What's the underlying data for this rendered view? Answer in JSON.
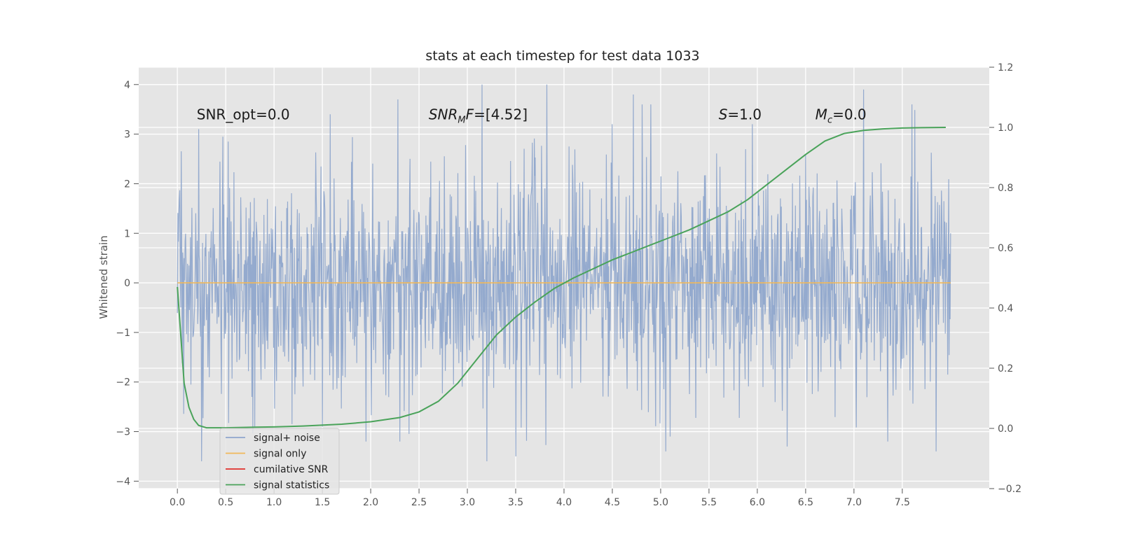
{
  "chart_data": {
    "type": "line",
    "title": "stats at each timestep for test data 1033",
    "xlabel": "",
    "ylabel": "Whitened strain",
    "xlim": [
      -0.4,
      8.4
    ],
    "ylim": [
      -4.15,
      4.35
    ],
    "y2lim": [
      -0.2,
      1.2
    ],
    "grid": true,
    "x_ticks": [
      "0.0",
      "0.5",
      "1.0",
      "1.5",
      "2.0",
      "2.5",
      "3.0",
      "3.5",
      "4.0",
      "4.5",
      "5.0",
      "5.5",
      "6.0",
      "6.5",
      "7.0",
      "7.5"
    ],
    "x_tick_values": [
      0,
      0.5,
      1,
      1.5,
      2,
      2.5,
      3,
      3.5,
      4,
      4.5,
      5,
      5.5,
      6,
      6.5,
      7,
      7.5
    ],
    "y_ticks": [
      "4",
      "3",
      "2",
      "1",
      "0",
      "−1",
      "−2",
      "−3",
      "−4"
    ],
    "y_tick_values": [
      4,
      3,
      2,
      1,
      0,
      -1,
      -2,
      -3,
      -4
    ],
    "y2_ticks": [
      "1.2",
      "1.0",
      "0.8",
      "0.6",
      "0.4",
      "0.2",
      "0.0",
      "−0.2"
    ],
    "y2_tick_values": [
      1.2,
      1.0,
      0.8,
      0.6,
      0.4,
      0.2,
      0.0,
      -0.2
    ],
    "annotations": [
      {
        "id": "snr-opt",
        "x": 0.2,
        "y": 3.3,
        "prefix": "SNR_opt=0.0",
        "sub": "",
        "suffix": ""
      },
      {
        "id": "snr-mf",
        "x": 2.6,
        "y": 3.3,
        "prefix": "SNR",
        "sub": "M",
        "suffix": "F=[4.52]"
      },
      {
        "id": "s-val",
        "x": 5.6,
        "y": 3.3,
        "prefix": "S",
        "sub": "",
        "suffix": "=1.0"
      },
      {
        "id": "mc-val",
        "x": 6.6,
        "y": 3.3,
        "prefix": "M",
        "sub": "c",
        "suffix": "=0.0"
      }
    ],
    "series": [
      {
        "name": "signal+ noise",
        "axis": "left",
        "color": "#8fa6cc",
        "x_range": [
          0.0,
          8.0
        ],
        "n_points": 1600,
        "envelope_typical": [
          -2.2,
          2.4
        ],
        "extremes_sample": [
          {
            "x": 0.02,
            "y": 1.7
          },
          {
            "x": 0.22,
            "y": 3.1
          },
          {
            "x": 0.25,
            "y": -3.6
          },
          {
            "x": 1.5,
            "y": -2.9
          },
          {
            "x": 1.58,
            "y": 3.4
          },
          {
            "x": 1.95,
            "y": -3.2
          },
          {
            "x": 2.28,
            "y": 3.7
          },
          {
            "x": 2.3,
            "y": -3.2
          },
          {
            "x": 3.15,
            "y": 4.0
          },
          {
            "x": 3.2,
            "y": -3.6
          },
          {
            "x": 3.5,
            "y": -3.5
          },
          {
            "x": 3.82,
            "y": 4.0
          },
          {
            "x": 4.5,
            "y": 3.2
          },
          {
            "x": 4.72,
            "y": 3.8
          },
          {
            "x": 4.9,
            "y": 3.6
          },
          {
            "x": 5.1,
            "y": -3.1
          },
          {
            "x": 5.95,
            "y": 3.2
          },
          {
            "x": 7.1,
            "y": 3.9
          },
          {
            "x": 7.35,
            "y": -3.2
          },
          {
            "x": 7.6,
            "y": 3.6
          },
          {
            "x": 7.85,
            "y": -3.4
          },
          {
            "x": 8.0,
            "y": 1.0
          }
        ]
      },
      {
        "name": "signal only",
        "axis": "left",
        "color": "#f0b85a",
        "x": [
          0.0,
          8.0
        ],
        "y": [
          0.0,
          0.0
        ]
      },
      {
        "name": "cumilative SNR",
        "axis": "left",
        "color": "#e0302a",
        "x": [],
        "y": []
      },
      {
        "name": "signal statistics",
        "axis": "right",
        "color": "#4aa35a",
        "x": [
          0.0,
          0.07,
          0.12,
          0.17,
          0.22,
          0.3,
          0.5,
          0.8,
          1.0,
          1.3,
          1.7,
          2.0,
          2.3,
          2.5,
          2.7,
          2.9,
          3.1,
          3.3,
          3.5,
          3.7,
          3.9,
          4.1,
          4.3,
          4.5,
          4.7,
          4.9,
          5.1,
          5.3,
          5.5,
          5.7,
          5.9,
          6.1,
          6.3,
          6.5,
          6.7,
          6.9,
          7.1,
          7.3,
          7.5,
          7.7,
          7.95
        ],
        "y": [
          0.47,
          0.15,
          0.07,
          0.03,
          0.01,
          0.002,
          0.002,
          0.004,
          0.005,
          0.008,
          0.014,
          0.022,
          0.036,
          0.055,
          0.09,
          0.15,
          0.23,
          0.31,
          0.37,
          0.42,
          0.465,
          0.5,
          0.53,
          0.56,
          0.585,
          0.61,
          0.635,
          0.66,
          0.69,
          0.72,
          0.76,
          0.81,
          0.86,
          0.91,
          0.955,
          0.98,
          0.99,
          0.995,
          0.998,
          0.999,
          1.0
        ]
      }
    ],
    "legend": {
      "placement": "lower-left",
      "entries": [
        {
          "label": "signal+ noise",
          "color": "#8fa6cc"
        },
        {
          "label": "signal only",
          "color": "#f0b85a"
        },
        {
          "label": "cumilative SNR",
          "color": "#e0302a"
        },
        {
          "label": "signal statistics",
          "color": "#4aa35a"
        }
      ]
    },
    "colors": {
      "plot_background": "#e5e5e5",
      "grid": "#ffffff",
      "axis_text": "#555555"
    }
  }
}
